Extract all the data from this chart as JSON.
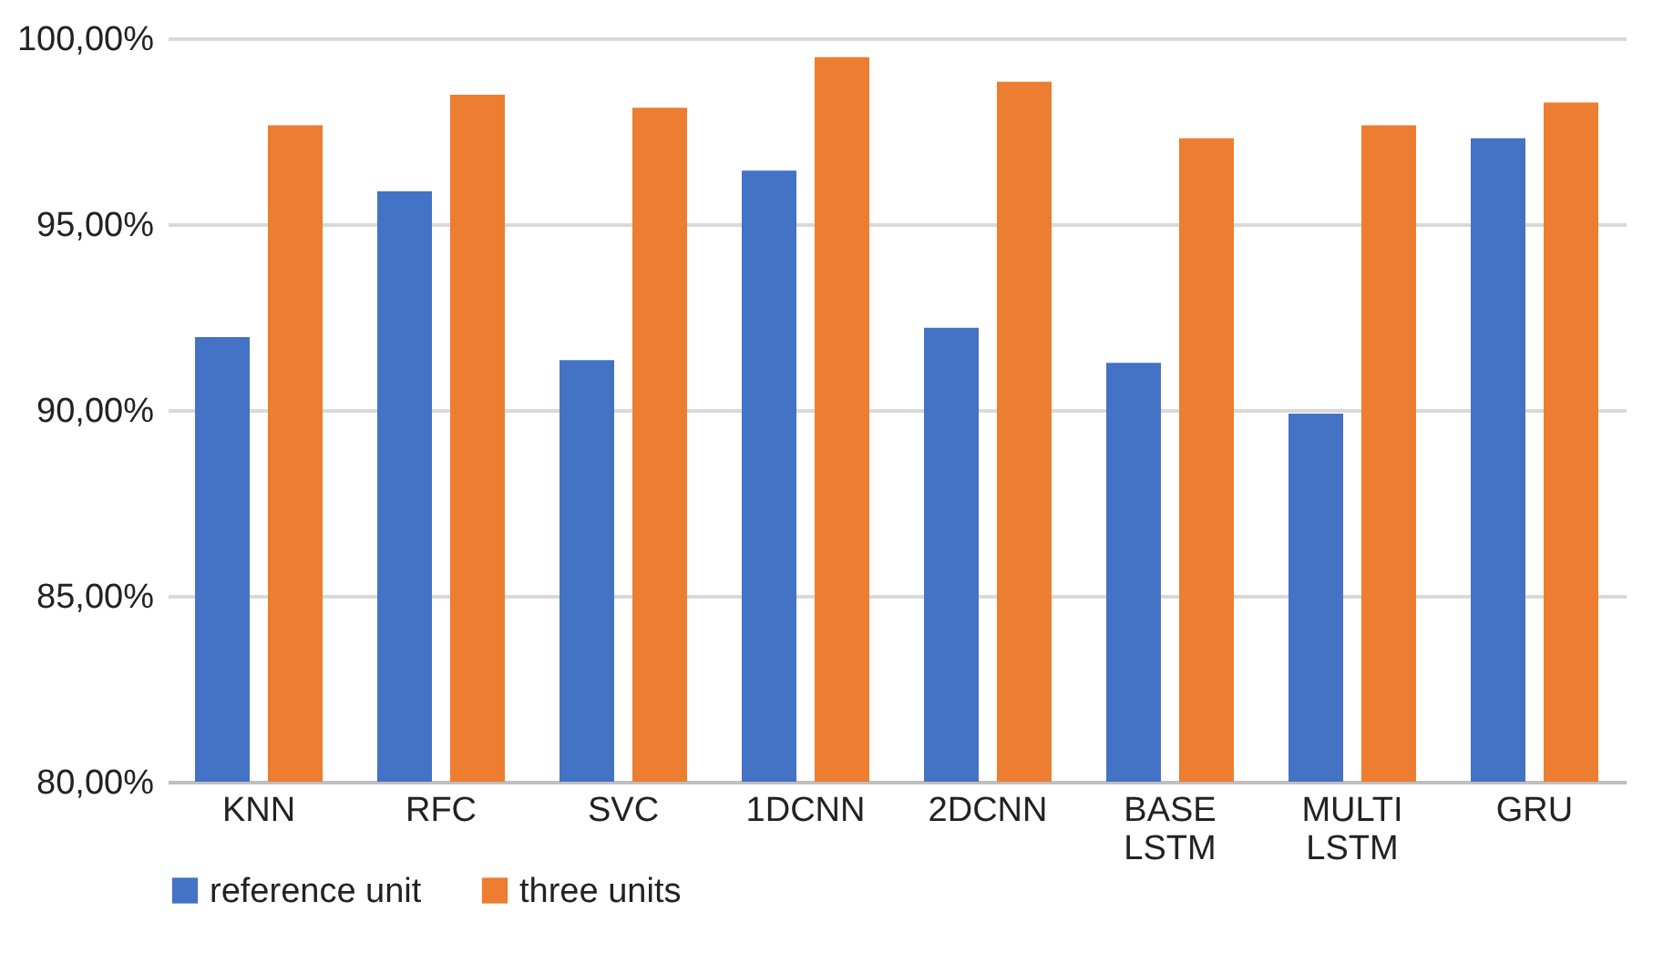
{
  "chart_data": {
    "type": "bar",
    "categories": [
      "KNN",
      "RFC",
      "SVC",
      "1DCNN",
      "2DCNN",
      "BASE LSTM",
      "MULTI LSTM",
      "GRU"
    ],
    "series": [
      {
        "name": "reference unit",
        "color": "#4472c4",
        "values": [
          91.96,
          95.88,
          91.34,
          96.44,
          92.21,
          91.27,
          89.9,
          97.31
        ]
      },
      {
        "name": "three units",
        "color": "#ed7d31",
        "values": [
          97.66,
          98.48,
          98.13,
          99.49,
          98.83,
          97.31,
          97.66,
          98.27
        ]
      }
    ],
    "ylim": [
      80,
      100
    ],
    "yticks": [
      {
        "value": 80,
        "label": "80,00%"
      },
      {
        "value": 85,
        "label": "85,00%"
      },
      {
        "value": 90,
        "label": "90,00%"
      },
      {
        "value": 95,
        "label": "95,00%"
      },
      {
        "value": 100,
        "label": "100,00%"
      }
    ],
    "grid": "y",
    "legend": "bottom"
  }
}
